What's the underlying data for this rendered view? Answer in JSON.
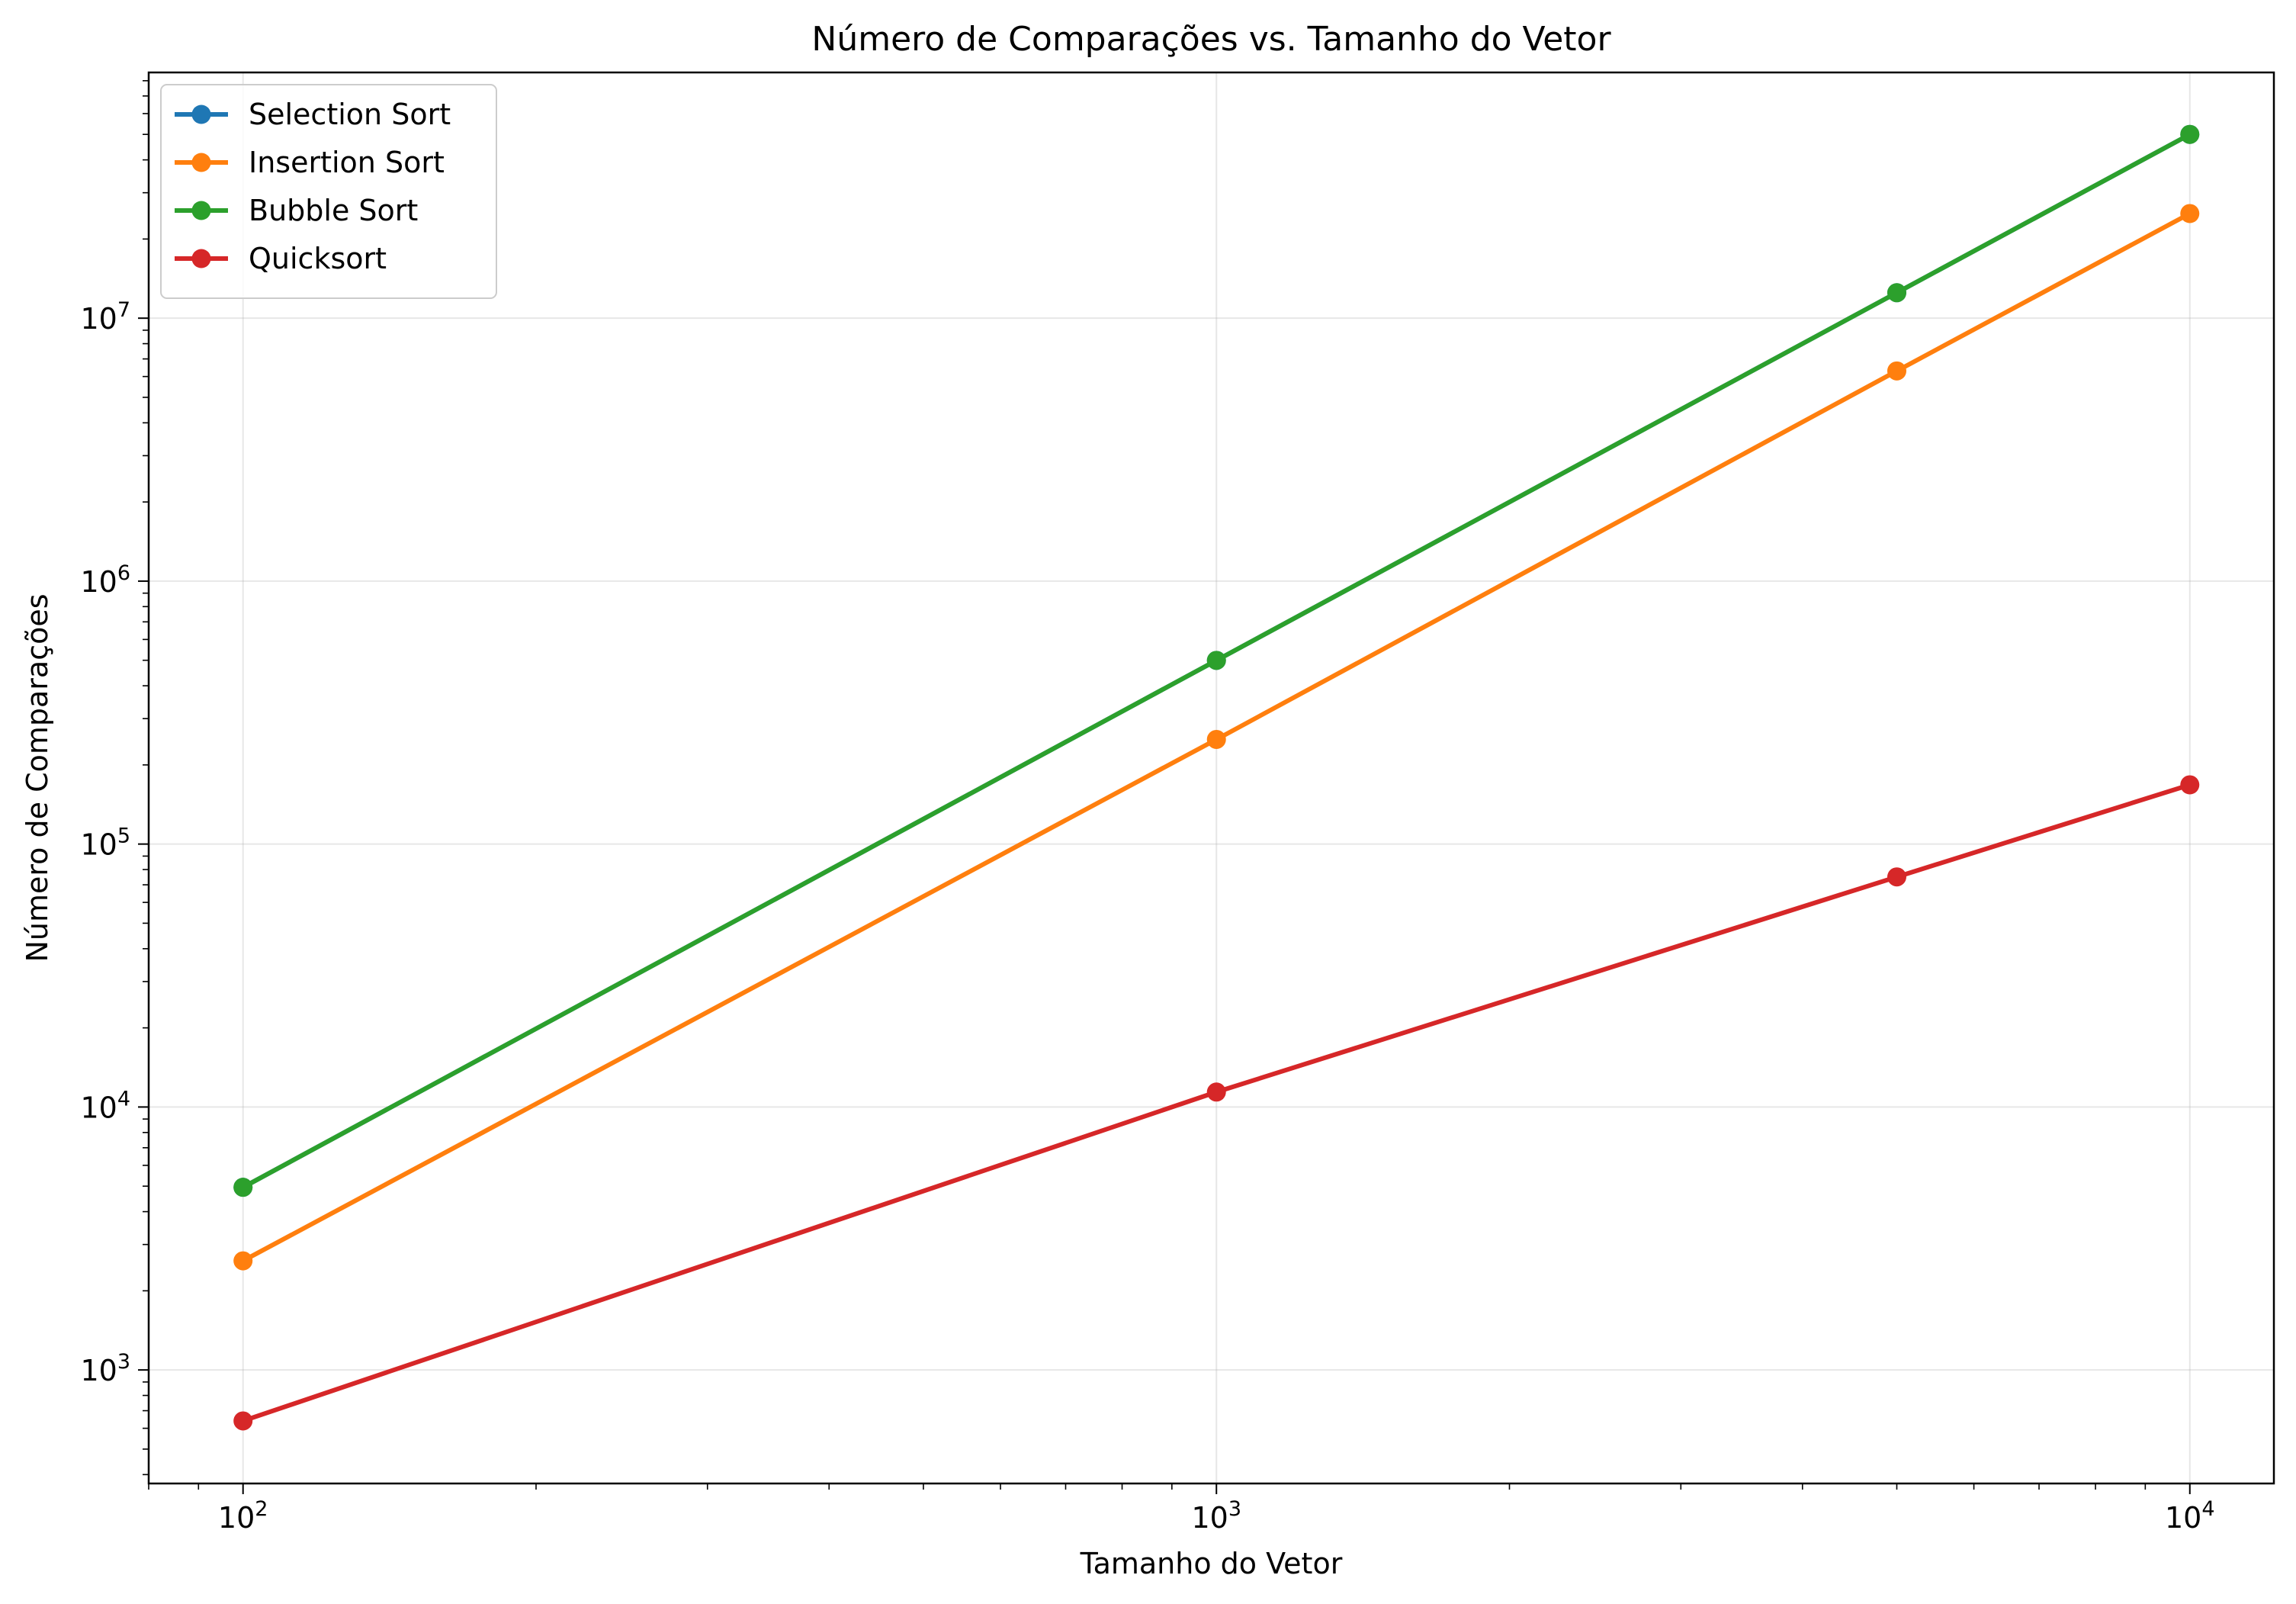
{
  "chart_data": {
    "type": "line",
    "title": "Número de Comparações vs. Tamanho do Vetor",
    "xlabel": "Tamanho do Vetor",
    "ylabel": "Número de Comparações",
    "xscale": "log",
    "yscale": "log",
    "xlim": [
      80,
      12200
    ],
    "ylim": [
      370,
      86000000
    ],
    "grid": true,
    "legend_position": "top-left",
    "x": [
      100,
      1000,
      5000,
      10000
    ],
    "x_ticks": [
      {
        "value": 100,
        "base": "10",
        "exp": "2"
      },
      {
        "value": 1000,
        "base": "10",
        "exp": "3"
      },
      {
        "value": 10000,
        "base": "10",
        "exp": "4"
      }
    ],
    "y_ticks": [
      {
        "value": 1000,
        "base": "10",
        "exp": "3"
      },
      {
        "value": 10000,
        "base": "10",
        "exp": "4"
      },
      {
        "value": 100000,
        "base": "10",
        "exp": "5"
      },
      {
        "value": 1000000,
        "base": "10",
        "exp": "6"
      },
      {
        "value": 10000000,
        "base": "10",
        "exp": "7"
      }
    ],
    "series": [
      {
        "name": "Selection Sort",
        "color": "#1f77b4",
        "values": [
          4950,
          499500,
          12497500,
          49995000
        ]
      },
      {
        "name": "Insertion Sort",
        "color": "#ff7f0e",
        "values": [
          2600,
          250000,
          6300000,
          25000000
        ]
      },
      {
        "name": "Bubble Sort",
        "color": "#2ca02c",
        "values": [
          4950,
          499500,
          12497500,
          49995000
        ]
      },
      {
        "name": "Quicksort",
        "color": "#d62728",
        "values": [
          640,
          11400,
          75000,
          168000
        ]
      }
    ]
  }
}
